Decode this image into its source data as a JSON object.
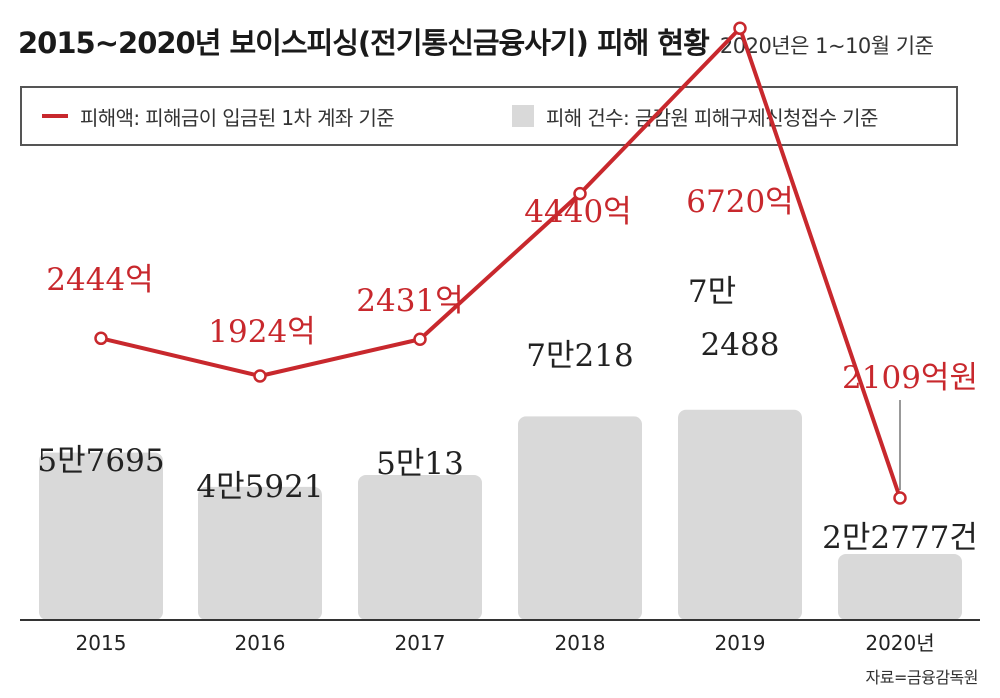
{
  "title": "2015~2020년 보이스피싱(전기통신금융사기) 피해 현황",
  "subtitle": "2020년은 1~10월 기준",
  "legend": {
    "line": "피해액: 피해금이 입금된 1차 계좌 기준",
    "bar": "피해 건수: 금감원 피해구제신청접수 기준"
  },
  "source": "자료=금융감독원",
  "colors": {
    "line": "#c8282d",
    "bar": "#d9d9d9",
    "axis": "#333333",
    "text": "#222222"
  },
  "chart_data": {
    "type": "bar",
    "categories": [
      "2015",
      "2016",
      "2017",
      "2018",
      "2019",
      "2020년"
    ],
    "bars": {
      "name": "피해 건수",
      "values": [
        57695,
        45921,
        50013,
        70218,
        72488,
        22777
      ],
      "labels": [
        "5만7695",
        "4만5921",
        "5만13",
        "7만218",
        "7만\n2488",
        "2만2777건"
      ]
    },
    "line": {
      "name": "피해액",
      "values": [
        2444,
        1924,
        2431,
        4440,
        6720,
        2109
      ],
      "labels": [
        "2444억",
        "1924억",
        "2431억",
        "4440억",
        "6720억",
        "2109억원"
      ]
    },
    "ylim_bars": [
      0,
      100000
    ],
    "ylim_line": [
      0,
      8000
    ],
    "grid": false,
    "legend_position": "top"
  }
}
